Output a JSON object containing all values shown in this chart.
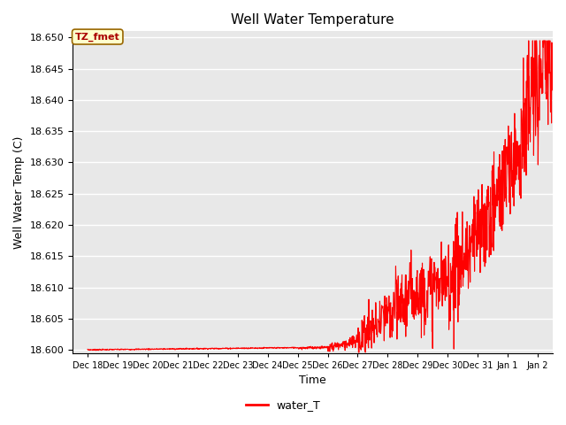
{
  "title": "Well Water Temperature",
  "xlabel": "Time",
  "ylabel": "Well Water Temp (C)",
  "line_color": "#FF0000",
  "line_width": 0.8,
  "legend_label": "water_T",
  "annotation_text": "TZ_fmet",
  "annotation_bg": "#FFFFCC",
  "annotation_border": "#996600",
  "ylim": [
    18.5995,
    18.651
  ],
  "yticks": [
    18.6,
    18.605,
    18.61,
    18.615,
    18.62,
    18.625,
    18.63,
    18.635,
    18.64,
    18.645,
    18.65
  ],
  "background_color": "#E8E8E8",
  "grid_color": "#FFFFFF",
  "x_tick_labels": [
    "Dec 18",
    "Dec 19",
    "Dec 20",
    "Dec 21",
    "Dec 22",
    "Dec 23",
    "Dec 24",
    "Dec 25",
    "Dec 26",
    "Dec 27",
    "Dec 28",
    "Dec 29",
    "Dec 30",
    "Dec 31",
    "Jan 1",
    "Jan 2"
  ]
}
